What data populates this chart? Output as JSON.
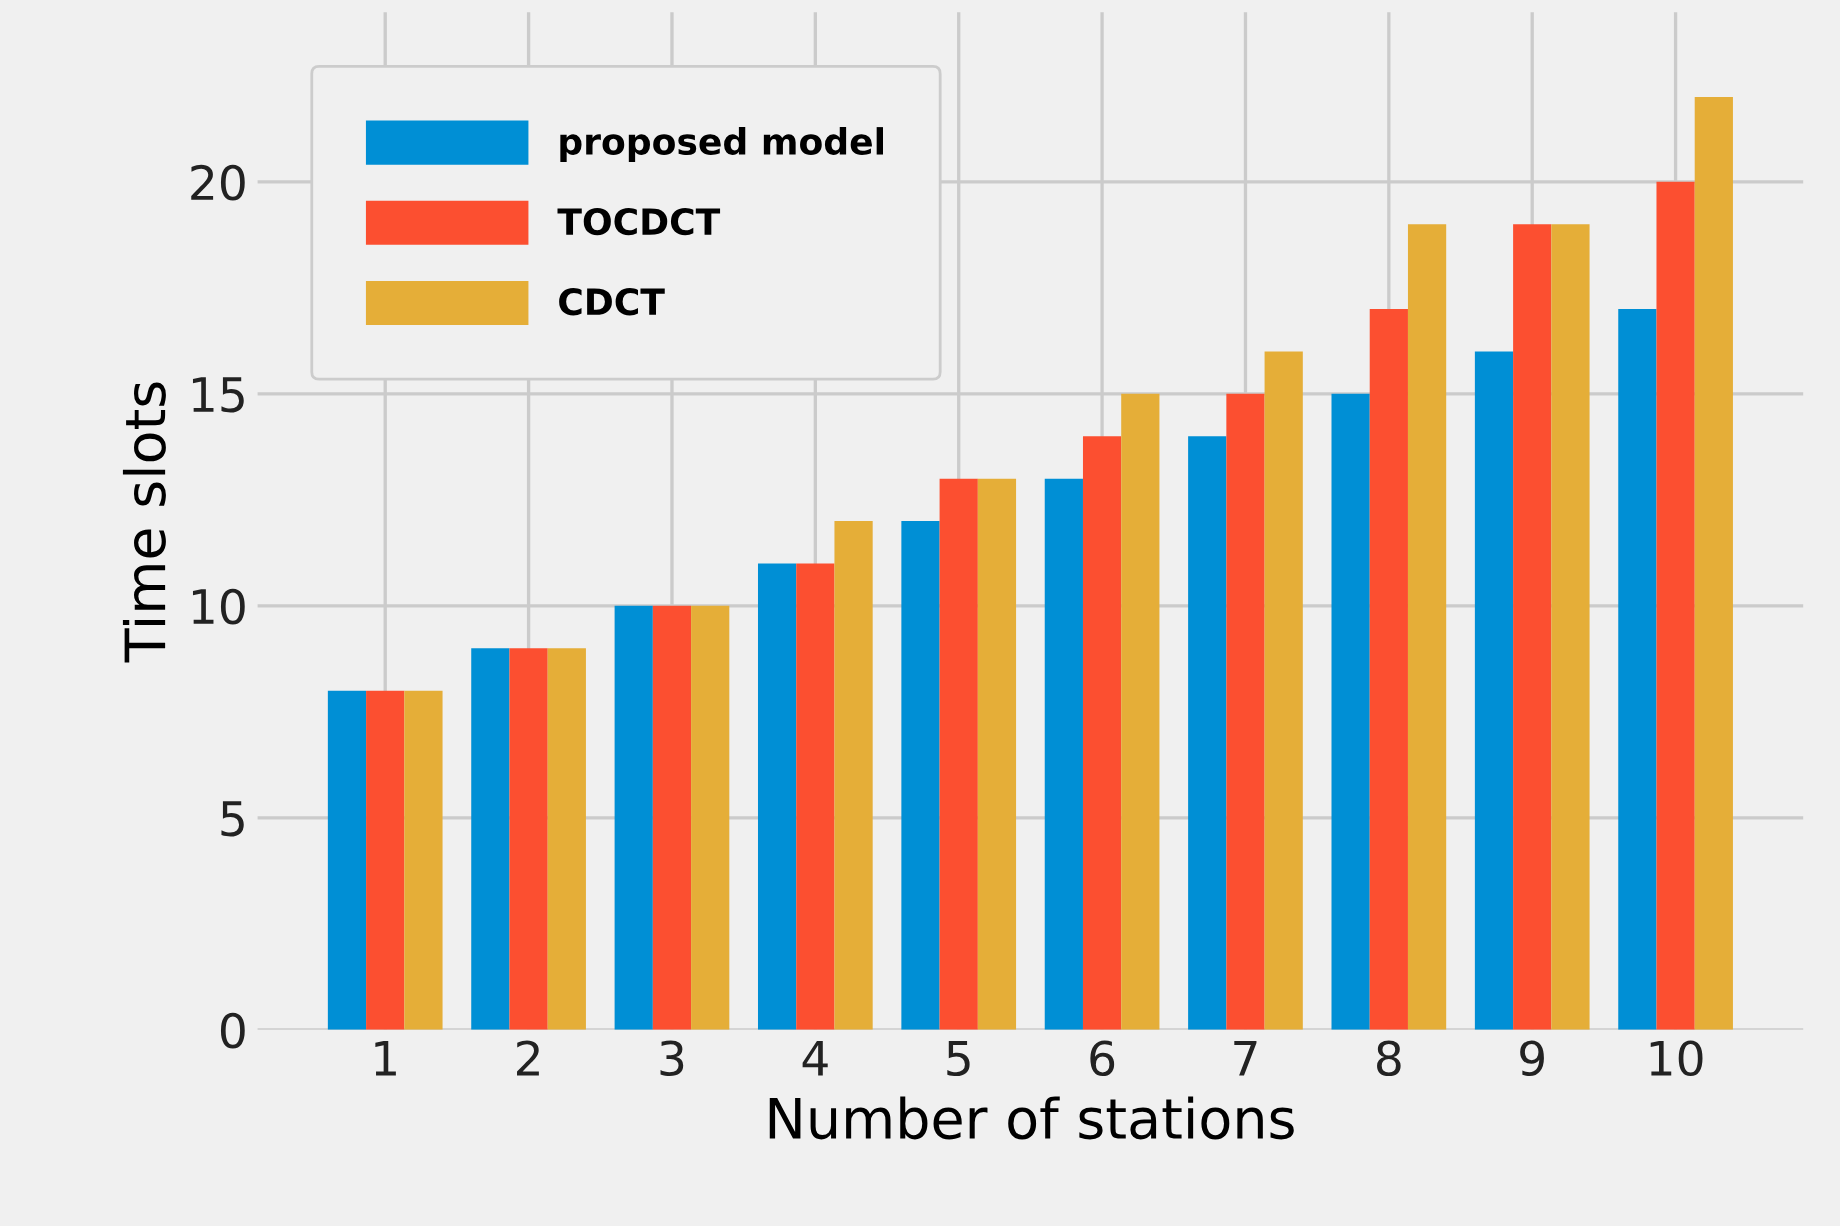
{
  "chart_data": {
    "type": "bar",
    "xlabel": "Number of stations",
    "ylabel": "Time slots",
    "categories": [
      "1",
      "2",
      "3",
      "4",
      "5",
      "6",
      "7",
      "8",
      "9",
      "10"
    ],
    "series": [
      {
        "name": "proposed model",
        "color": "#008fd5",
        "values": [
          8,
          9,
          10,
          11,
          12,
          13,
          14,
          15,
          16,
          17
        ]
      },
      {
        "name": "TOCDCT",
        "color": "#fc4f30",
        "values": [
          8,
          9,
          10,
          11,
          13,
          14,
          15,
          17,
          19,
          20
        ]
      },
      {
        "name": "CDCT",
        "color": "#e5ae38",
        "values": [
          8,
          9,
          10,
          12,
          13,
          15,
          16,
          19,
          19,
          22
        ]
      }
    ],
    "ylim": [
      0,
      24
    ],
    "yticks": [
      0,
      5,
      10,
      15,
      20
    ],
    "grid": true,
    "legend": "top left"
  }
}
